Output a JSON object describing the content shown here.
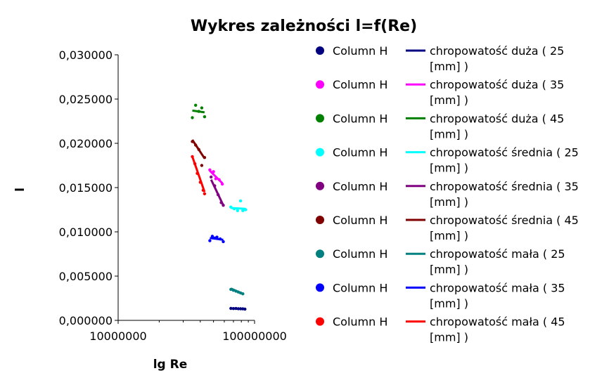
{
  "chart_data": {
    "type": "scatter",
    "title": "Wykres zależności l=f(Re)",
    "xlabel": "lg Re",
    "ylabel": "l",
    "x_scale": "log",
    "xlim": [
      10000000,
      100000000
    ],
    "ylim": [
      0,
      0.03
    ],
    "x_ticks": [
      "10000000",
      "100000000"
    ],
    "y_ticks": [
      "0,000000",
      "0,005000",
      "0,010000",
      "0,015000",
      "0,020000",
      "0,025000",
      "0,030000"
    ],
    "grid": false,
    "legend_position": "right",
    "series": [
      {
        "name": "Column H",
        "kind": "points",
        "color": "#000080",
        "points": [
          [
            67000000,
            0.00135
          ],
          [
            70000000,
            0.00133
          ],
          [
            73000000,
            0.00134
          ],
          [
            76000000,
            0.00132
          ],
          [
            79000000,
            0.00131
          ],
          [
            82000000,
            0.0013
          ],
          [
            85000000,
            0.00127
          ]
        ]
      },
      {
        "name": "chropowatość duża ( 25 [mm] )",
        "kind": "line",
        "color": "#000080",
        "points": [
          [
            67000000,
            0.00136
          ],
          [
            85000000,
            0.00127
          ]
        ]
      },
      {
        "name": "Column H",
        "kind": "points",
        "color": "#ff00ff",
        "points": [
          [
            47000000,
            0.017
          ],
          [
            50000000,
            0.0168
          ],
          [
            52000000,
            0.016
          ],
          [
            55000000,
            0.0159
          ],
          [
            58000000,
            0.0154
          ]
        ]
      },
      {
        "name": "chropowatość duża ( 35 [mm] )",
        "kind": "line",
        "color": "#ff00ff",
        "points": [
          [
            47000000,
            0.0169
          ],
          [
            58000000,
            0.0155
          ]
        ]
      },
      {
        "name": "Column H",
        "kind": "points",
        "color": "#008000",
        "points": [
          [
            35000000,
            0.0229
          ],
          [
            37000000,
            0.0243
          ],
          [
            39000000,
            0.0236
          ],
          [
            41000000,
            0.024
          ],
          [
            43000000,
            0.023
          ]
        ]
      },
      {
        "name": "chropowatość duża ( 45 [mm] )",
        "kind": "line",
        "color": "#008000",
        "points": [
          [
            35000000,
            0.0237
          ],
          [
            43000000,
            0.0235
          ]
        ]
      },
      {
        "name": "Column H",
        "kind": "points",
        "color": "#00ffff",
        "points": [
          [
            67000000,
            0.0128
          ],
          [
            71000000,
            0.0126
          ],
          [
            75000000,
            0.0124
          ],
          [
            79000000,
            0.0135
          ],
          [
            82000000,
            0.0124
          ],
          [
            86000000,
            0.0125
          ]
        ]
      },
      {
        "name": "chropowatość średnia ( 25 [mm] )",
        "kind": "line",
        "color": "#00ffff",
        "points": [
          [
            67000000,
            0.0127
          ],
          [
            86000000,
            0.0126
          ]
        ]
      },
      {
        "name": "Column H",
        "kind": "points",
        "color": "#800080",
        "points": [
          [
            48000000,
            0.0162
          ],
          [
            51000000,
            0.0152
          ],
          [
            54000000,
            0.0142
          ],
          [
            57000000,
            0.0133
          ],
          [
            59000000,
            0.013
          ]
        ]
      },
      {
        "name": "chropowatość średnia ( 35 [mm] )",
        "kind": "line",
        "color": "#800080",
        "points": [
          [
            48000000,
            0.0159
          ],
          [
            59000000,
            0.013
          ]
        ]
      },
      {
        "name": "Column H",
        "kind": "points",
        "color": "#800000",
        "points": [
          [
            35000000,
            0.0202
          ],
          [
            37000000,
            0.0198
          ],
          [
            39000000,
            0.0193
          ],
          [
            41000000,
            0.0175
          ],
          [
            43000000,
            0.0184
          ]
        ]
      },
      {
        "name": "chropowatość średnia ( 45 [mm] )",
        "kind": "line",
        "color": "#800000",
        "points": [
          [
            35000000,
            0.0204
          ],
          [
            43000000,
            0.0183
          ]
        ]
      },
      {
        "name": "Column H",
        "kind": "points",
        "color": "#008080",
        "points": [
          [
            67000000,
            0.0035
          ],
          [
            70000000,
            0.0034
          ],
          [
            73000000,
            0.0033
          ],
          [
            76000000,
            0.0032
          ],
          [
            79000000,
            0.0031
          ],
          [
            82000000,
            0.003
          ]
        ]
      },
      {
        "name": "chropowatość mała ( 25 [mm] )",
        "kind": "line",
        "color": "#008080",
        "points": [
          [
            67000000,
            0.0036
          ],
          [
            82000000,
            0.003
          ]
        ]
      },
      {
        "name": "Column H",
        "kind": "points",
        "color": "#0000ff",
        "points": [
          [
            47000000,
            0.009
          ],
          [
            49000000,
            0.0095
          ],
          [
            51000000,
            0.0093
          ],
          [
            53000000,
            0.0094
          ],
          [
            56000000,
            0.0092
          ],
          [
            59000000,
            0.0089
          ]
        ]
      },
      {
        "name": "chropowatość mała ( 35 [mm] )",
        "kind": "line",
        "color": "#0000ff",
        "points": [
          [
            47000000,
            0.0093
          ],
          [
            59000000,
            0.0091
          ]
        ]
      },
      {
        "name": "Column H",
        "kind": "points",
        "color": "#ff0000",
        "points": [
          [
            35000000,
            0.0185
          ],
          [
            36500000,
            0.0177
          ],
          [
            38000000,
            0.0166
          ],
          [
            40000000,
            0.0156
          ],
          [
            42000000,
            0.0147
          ],
          [
            43000000,
            0.0143
          ]
        ]
      },
      {
        "name": "chropowatość mała ( 45 [mm] )",
        "kind": "line",
        "color": "#ff0000",
        "points": [
          [
            35000000,
            0.0185
          ],
          [
            43000000,
            0.0145
          ]
        ]
      }
    ]
  }
}
